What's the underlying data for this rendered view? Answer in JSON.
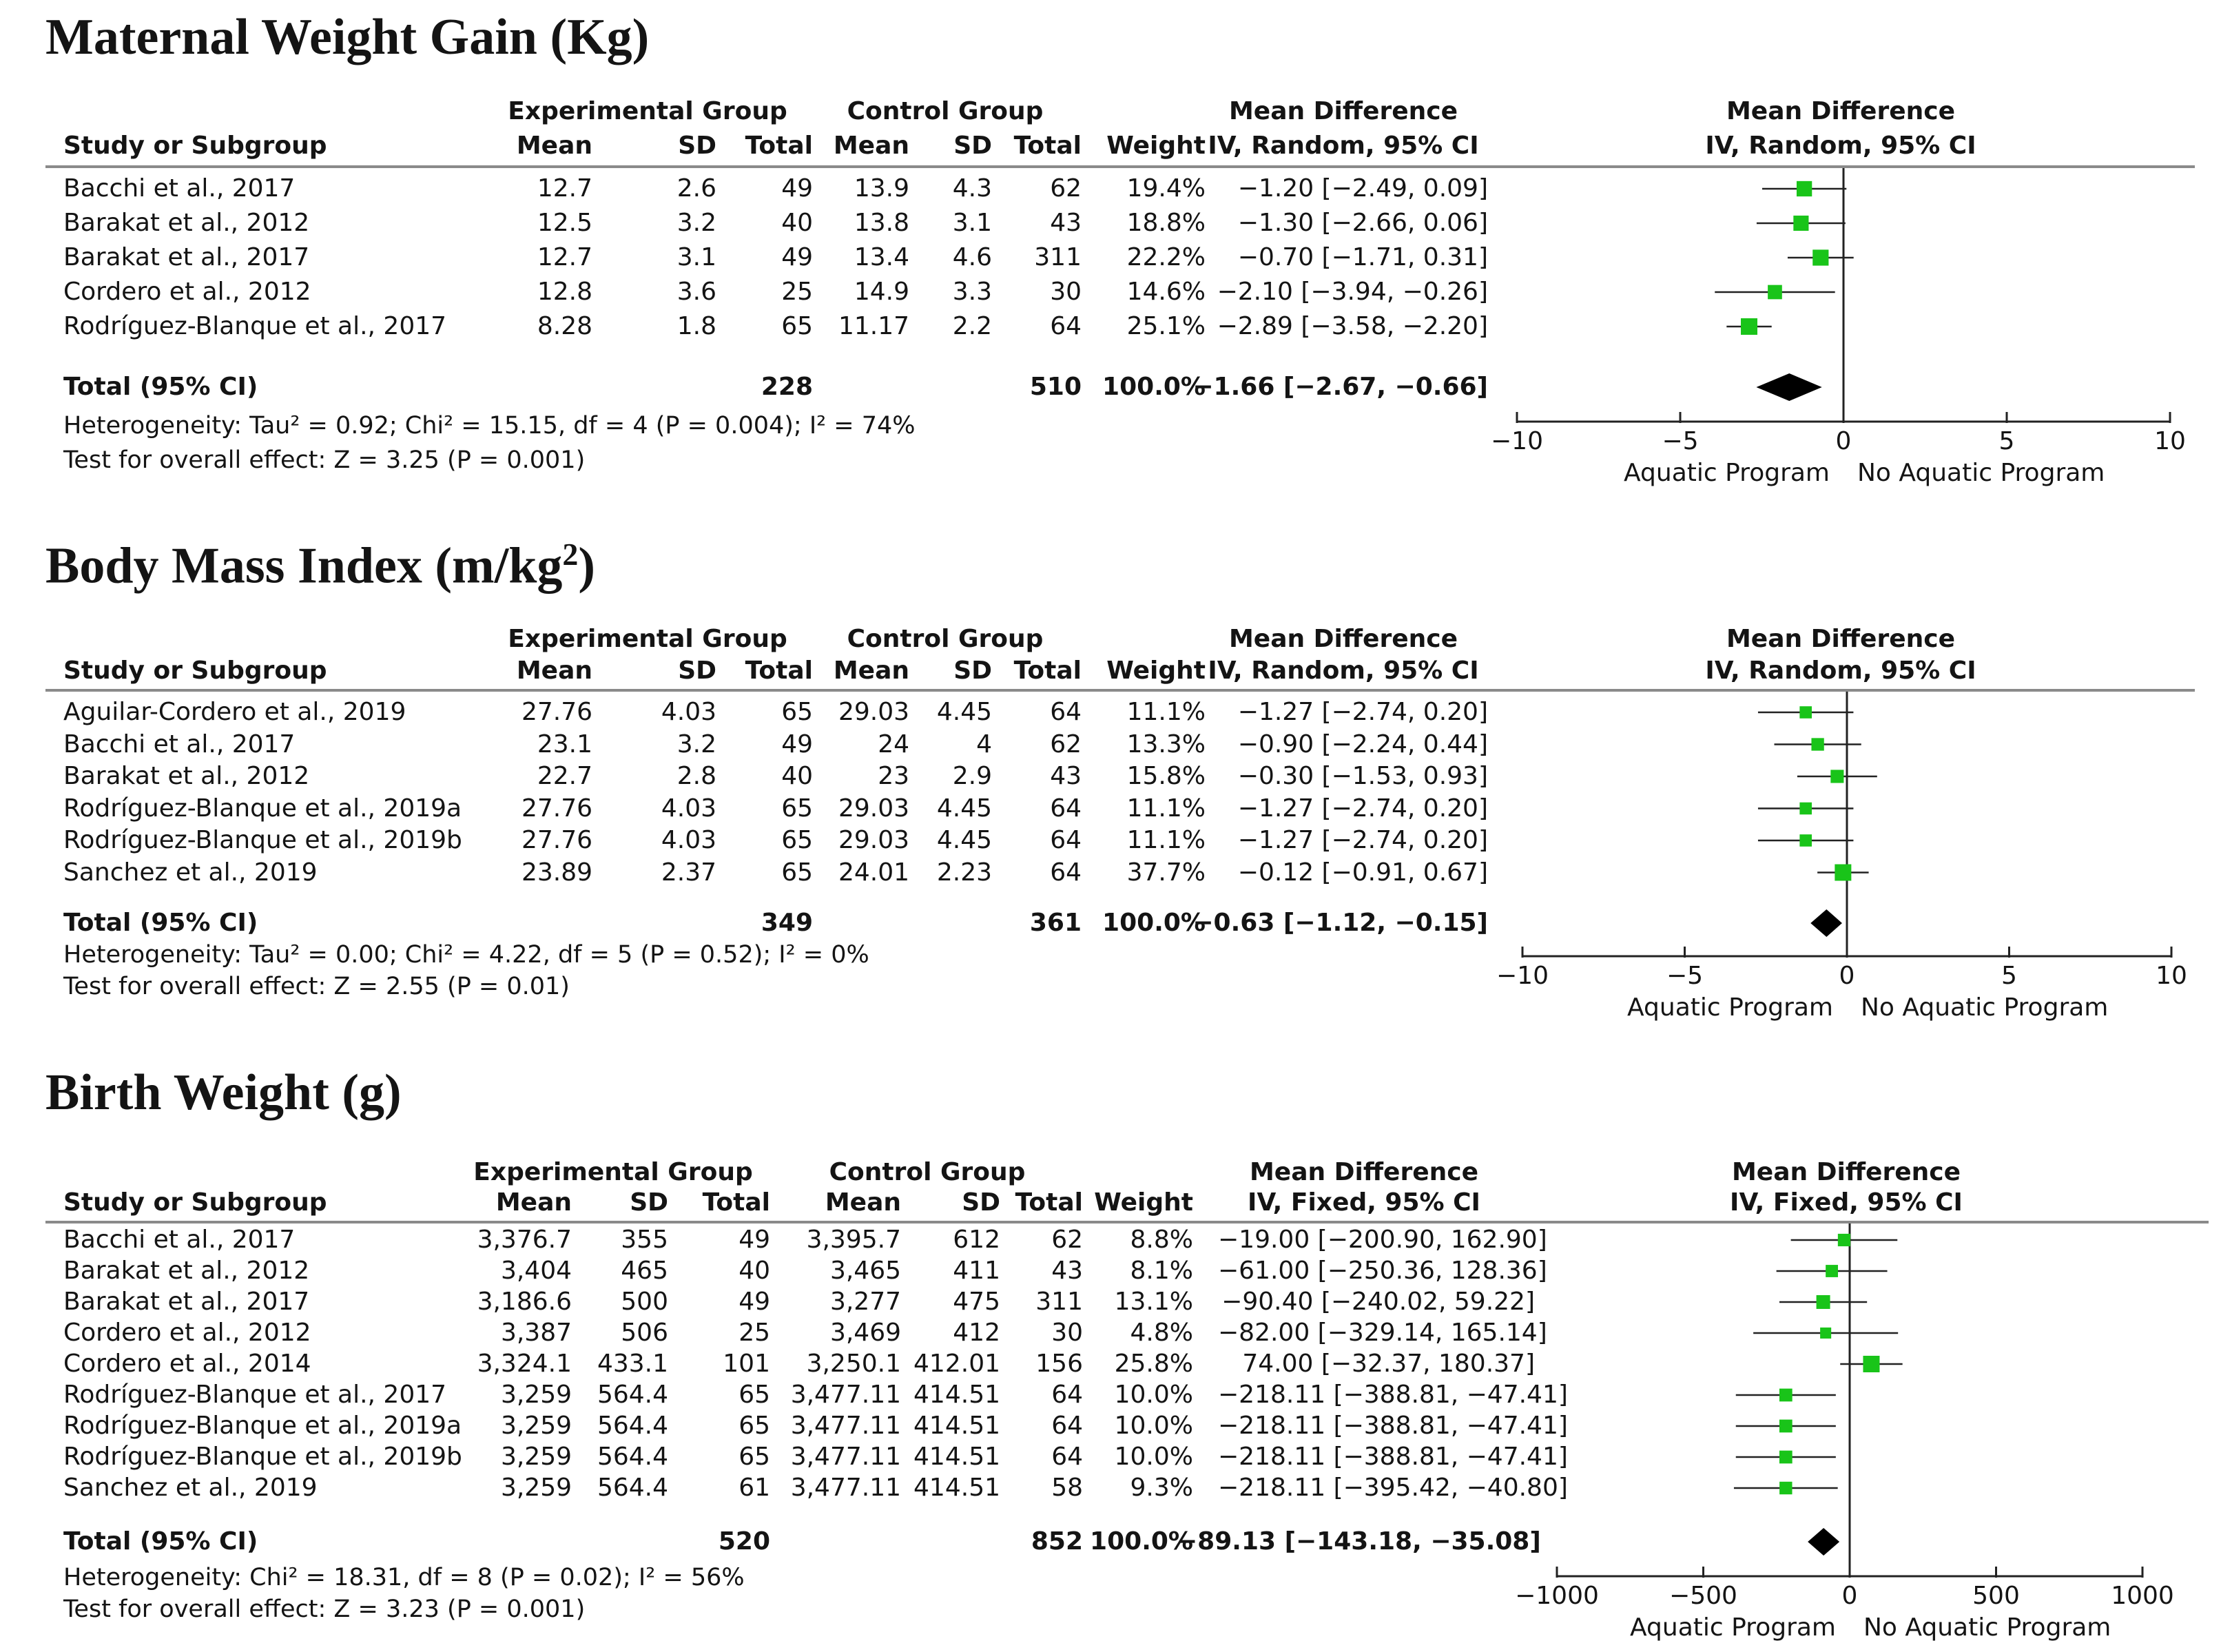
{
  "colors": {
    "point": "#19c419",
    "line": "#222222",
    "diamond": "#000000",
    "rule": "#8a8a8a"
  },
  "chart_data": [
    {
      "type": "forest",
      "title": "Maternal Weight Gain (Kg)",
      "title_html": "",
      "headers": {
        "exp_group": "Experimental Group",
        "ctrl_group": "Control Group",
        "md_header1": "Mean Difference",
        "md_header2": "IV, Random, 95% CI",
        "plot_header1": "Mean Difference",
        "plot_header2": "IV, Random, 95% CI",
        "study": "Study or Subgroup",
        "mean": "Mean",
        "sd": "SD",
        "total": "Total",
        "mean2": "Mean",
        "sd2": "SD",
        "total2": "Total",
        "weight": "Weight"
      },
      "rows": [
        {
          "study": "Bacchi et al., 2017",
          "exp_mean": "12.7",
          "exp_sd": "2.6",
          "exp_total": "49",
          "ctrl_mean": "13.9",
          "ctrl_sd": "4.3",
          "ctrl_total": "62",
          "weight": "19.4%",
          "ci_text": "−1.20 [−2.49, 0.09]",
          "md": -1.2,
          "lo": -2.49,
          "hi": 0.09,
          "w": 19.4
        },
        {
          "study": "Barakat et al., 2012",
          "exp_mean": "12.5",
          "exp_sd": "3.2",
          "exp_total": "40",
          "ctrl_mean": "13.8",
          "ctrl_sd": "3.1",
          "ctrl_total": "43",
          "weight": "18.8%",
          "ci_text": "−1.30 [−2.66, 0.06]",
          "md": -1.3,
          "lo": -2.66,
          "hi": 0.06,
          "w": 18.8
        },
        {
          "study": "Barakat et al., 2017",
          "exp_mean": "12.7",
          "exp_sd": "3.1",
          "exp_total": "49",
          "ctrl_mean": "13.4",
          "ctrl_sd": "4.6",
          "ctrl_total": "311",
          "weight": "22.2%",
          "ci_text": "−0.70 [−1.71, 0.31]",
          "md": -0.7,
          "lo": -1.71,
          "hi": 0.31,
          "w": 22.2
        },
        {
          "study": "Cordero et al., 2012",
          "exp_mean": "12.8",
          "exp_sd": "3.6",
          "exp_total": "25",
          "ctrl_mean": "14.9",
          "ctrl_sd": "3.3",
          "ctrl_total": "30",
          "weight": "14.6%",
          "ci_text": "−2.10 [−3.94, −0.26]",
          "md": -2.1,
          "lo": -3.94,
          "hi": -0.26,
          "w": 14.6
        },
        {
          "study": "Rodríguez-Blanque et al., 2017",
          "exp_mean": "8.28",
          "exp_sd": "1.8",
          "exp_total": "65",
          "ctrl_mean": "11.17",
          "ctrl_sd": "2.2",
          "ctrl_total": "64",
          "weight": "25.1%",
          "ci_text": "−2.89 [−3.58, −2.20]",
          "md": -2.89,
          "lo": -3.58,
          "hi": -2.2,
          "w": 25.1
        }
      ],
      "total": {
        "label": "Total (95% CI)",
        "exp_total": "228",
        "ctrl_total": "510",
        "weight": "100.0%",
        "ci_text": "−1.66 [−2.67, −0.66]",
        "md": -1.66,
        "lo": -2.67,
        "hi": -0.66
      },
      "heterogeneity": "Heterogeneity: Tau² = 0.92; Chi² = 15.15, df = 4 (P = 0.004); I² = 74%",
      "overall": "Test for overall effect: Z = 3.25 (P = 0.001)",
      "xlim": [
        -10,
        10
      ],
      "ticks": [
        -10,
        -5,
        0,
        5,
        10
      ],
      "tick_labels": [
        "−10",
        "−5",
        "0",
        "5",
        "10"
      ],
      "left_label": "Aquatic Program",
      "right_label": "No Aquatic Program"
    },
    {
      "type": "forest",
      "title": "Body Mass Index (m/kg",
      "title_sup": "2",
      "title_end": ")",
      "headers": {
        "exp_group": "Experimental Group",
        "ctrl_group": "Control Group",
        "md_header1": "Mean Difference",
        "md_header2": "IV, Random, 95% CI",
        "plot_header1": "Mean Difference",
        "plot_header2": "IV, Random, 95% CI",
        "study": "Study or Subgroup",
        "mean": "Mean",
        "sd": "SD",
        "total": "Total",
        "mean2": "Mean",
        "sd2": "SD",
        "total2": "Total",
        "weight": "Weight"
      },
      "rows": [
        {
          "study": "Aguilar-Cordero et al., 2019",
          "exp_mean": "27.76",
          "exp_sd": "4.03",
          "exp_total": "65",
          "ctrl_mean": "29.03",
          "ctrl_sd": "4.45",
          "ctrl_total": "64",
          "weight": "11.1%",
          "ci_text": "−1.27 [−2.74, 0.20]",
          "md": -1.27,
          "lo": -2.74,
          "hi": 0.2,
          "w": 11.1
        },
        {
          "study": "Bacchi et al., 2017",
          "exp_mean": "23.1",
          "exp_sd": "3.2",
          "exp_total": "49",
          "ctrl_mean": "24",
          "ctrl_sd": "4",
          "ctrl_total": "62",
          "weight": "13.3%",
          "ci_text": "−0.90 [−2.24, 0.44]",
          "md": -0.9,
          "lo": -2.24,
          "hi": 0.44,
          "w": 13.3
        },
        {
          "study": "Barakat et al., 2012",
          "exp_mean": "22.7",
          "exp_sd": "2.8",
          "exp_total": "40",
          "ctrl_mean": "23",
          "ctrl_sd": "2.9",
          "ctrl_total": "43",
          "weight": "15.8%",
          "ci_text": "−0.30 [−1.53, 0.93]",
          "md": -0.3,
          "lo": -1.53,
          "hi": 0.93,
          "w": 15.8
        },
        {
          "study": "Rodríguez-Blanque et al., 2019a",
          "exp_mean": "27.76",
          "exp_sd": "4.03",
          "exp_total": "65",
          "ctrl_mean": "29.03",
          "ctrl_sd": "4.45",
          "ctrl_total": "64",
          "weight": "11.1%",
          "ci_text": "−1.27 [−2.74, 0.20]",
          "md": -1.27,
          "lo": -2.74,
          "hi": 0.2,
          "w": 11.1
        },
        {
          "study": "Rodríguez-Blanque et al., 2019b",
          "exp_mean": "27.76",
          "exp_sd": "4.03",
          "exp_total": "65",
          "ctrl_mean": "29.03",
          "ctrl_sd": "4.45",
          "ctrl_total": "64",
          "weight": "11.1%",
          "ci_text": "−1.27 [−2.74, 0.20]",
          "md": -1.27,
          "lo": -2.74,
          "hi": 0.2,
          "w": 11.1
        },
        {
          "study": "Sanchez et al., 2019",
          "exp_mean": "23.89",
          "exp_sd": "2.37",
          "exp_total": "65",
          "ctrl_mean": "24.01",
          "ctrl_sd": "2.23",
          "ctrl_total": "64",
          "weight": "37.7%",
          "ci_text": "−0.12 [−0.91, 0.67]",
          "md": -0.12,
          "lo": -0.91,
          "hi": 0.67,
          "w": 37.7
        }
      ],
      "total": {
        "label": "Total (95% CI)",
        "exp_total": "349",
        "ctrl_total": "361",
        "weight": "100.0%",
        "ci_text": "−0.63 [−1.12, −0.15]",
        "md": -0.63,
        "lo": -1.12,
        "hi": -0.15
      },
      "heterogeneity": "Heterogeneity: Tau² = 0.00; Chi² = 4.22, df = 5 (P = 0.52); I² = 0%",
      "overall": "Test for overall effect: Z = 2.55 (P = 0.01)",
      "xlim": [
        -10,
        10
      ],
      "ticks": [
        -10,
        -5,
        0,
        5,
        10
      ],
      "tick_labels": [
        "−10",
        "−5",
        "0",
        "5",
        "10"
      ],
      "left_label": "Aquatic Program",
      "right_label": "No Aquatic Program"
    },
    {
      "type": "forest",
      "title": "Birth Weight (g)",
      "headers": {
        "exp_group": "Experimental Group",
        "ctrl_group": "Control Group",
        "md_header1": "Mean Difference",
        "md_header2": "IV, Fixed, 95% CI",
        "plot_header1": "Mean Difference",
        "plot_header2": "IV, Fixed, 95% CI",
        "study": "Study or Subgroup",
        "mean": "Mean",
        "sd": "SD",
        "total": "Total",
        "mean2": "Mean",
        "sd2": "SD",
        "total2": "Total",
        "weight": "Weight"
      },
      "rows": [
        {
          "study": "Bacchi et al., 2017",
          "exp_mean": "3,376.7",
          "exp_sd": "355",
          "exp_total": "49",
          "ctrl_mean": "3,395.7",
          "ctrl_sd": "612",
          "ctrl_total": "62",
          "weight": "8.8%",
          "ci_text": "−19.00 [−200.90, 162.90]",
          "md": -19.0,
          "lo": -200.9,
          "hi": 162.9,
          "w": 8.8
        },
        {
          "study": "Barakat et al., 2012",
          "exp_mean": "3,404",
          "exp_sd": "465",
          "exp_total": "40",
          "ctrl_mean": "3,465",
          "ctrl_sd": "411",
          "ctrl_total": "43",
          "weight": "8.1%",
          "ci_text": "−61.00 [−250.36, 128.36]",
          "md": -61.0,
          "lo": -250.36,
          "hi": 128.36,
          "w": 8.1
        },
        {
          "study": "Barakat et al., 2017",
          "exp_mean": "3,186.6",
          "exp_sd": "500",
          "exp_total": "49",
          "ctrl_mean": "3,277",
          "ctrl_sd": "475",
          "ctrl_total": "311",
          "weight": "13.1%",
          "ci_text": "−90.40 [−240.02, 59.22]",
          "md": -90.4,
          "lo": -240.02,
          "hi": 59.22,
          "w": 13.1
        },
        {
          "study": "Cordero et al., 2012",
          "exp_mean": "3,387",
          "exp_sd": "506",
          "exp_total": "25",
          "ctrl_mean": "3,469",
          "ctrl_sd": "412",
          "ctrl_total": "30",
          "weight": "4.8%",
          "ci_text": "−82.00 [−329.14, 165.14]",
          "md": -82.0,
          "lo": -329.14,
          "hi": 165.14,
          "w": 4.8
        },
        {
          "study": "Cordero et al., 2014",
          "exp_mean": "3,324.1",
          "exp_sd": "433.1",
          "exp_total": "101",
          "ctrl_mean": "3,250.1",
          "ctrl_sd": "412.01",
          "ctrl_total": "156",
          "weight": "25.8%",
          "ci_text": "74.00 [−32.37, 180.37]",
          "md": 74.0,
          "lo": -32.37,
          "hi": 180.37,
          "w": 25.8
        },
        {
          "study": "Rodríguez-Blanque et al., 2017",
          "exp_mean": "3,259",
          "exp_sd": "564.4",
          "exp_total": "65",
          "ctrl_mean": "3,477.11",
          "ctrl_sd": "414.51",
          "ctrl_total": "64",
          "weight": "10.0%",
          "ci_text": "−218.11 [−388.81, −47.41]",
          "md": -218.11,
          "lo": -388.81,
          "hi": -47.41,
          "w": 10.0
        },
        {
          "study": "Rodríguez-Blanque et al., 2019a",
          "exp_mean": "3,259",
          "exp_sd": "564.4",
          "exp_total": "65",
          "ctrl_mean": "3,477.11",
          "ctrl_sd": "414.51",
          "ctrl_total": "64",
          "weight": "10.0%",
          "ci_text": "−218.11 [−388.81, −47.41]",
          "md": -218.11,
          "lo": -388.81,
          "hi": -47.41,
          "w": 10.0
        },
        {
          "study": "Rodríguez-Blanque et al., 2019b",
          "exp_mean": "3,259",
          "exp_sd": "564.4",
          "exp_total": "65",
          "ctrl_mean": "3,477.11",
          "ctrl_sd": "414.51",
          "ctrl_total": "64",
          "weight": "10.0%",
          "ci_text": "−218.11 [−388.81, −47.41]",
          "md": -218.11,
          "lo": -388.81,
          "hi": -47.41,
          "w": 10.0
        },
        {
          "study": "Sanchez et al., 2019",
          "exp_mean": "3,259",
          "exp_sd": "564.4",
          "exp_total": "61",
          "ctrl_mean": "3,477.11",
          "ctrl_sd": "414.51",
          "ctrl_total": "58",
          "weight": "9.3%",
          "ci_text": "−218.11 [−395.42, −40.80]",
          "md": -218.11,
          "lo": -395.42,
          "hi": -40.8,
          "w": 9.3
        }
      ],
      "total": {
        "label": "Total (95% CI)",
        "exp_total": "520",
        "ctrl_total": "852",
        "weight": "100.0%",
        "ci_text": "−89.13 [−143.18, −35.08]",
        "md": -89.13,
        "lo": -143.18,
        "hi": -35.08
      },
      "heterogeneity": "Heterogeneity: Chi² = 18.31, df = 8 (P = 0.02); I² = 56%",
      "overall": "Test for overall effect: Z = 3.23 (P = 0.001)",
      "xlim": [
        -1000,
        1000
      ],
      "ticks": [
        -1000,
        -500,
        0,
        500,
        1000
      ],
      "tick_labels": [
        "−1000",
        "−500",
        "0",
        "500",
        "1000"
      ],
      "left_label": "Aquatic Program",
      "right_label": "No Aquatic Program"
    }
  ]
}
